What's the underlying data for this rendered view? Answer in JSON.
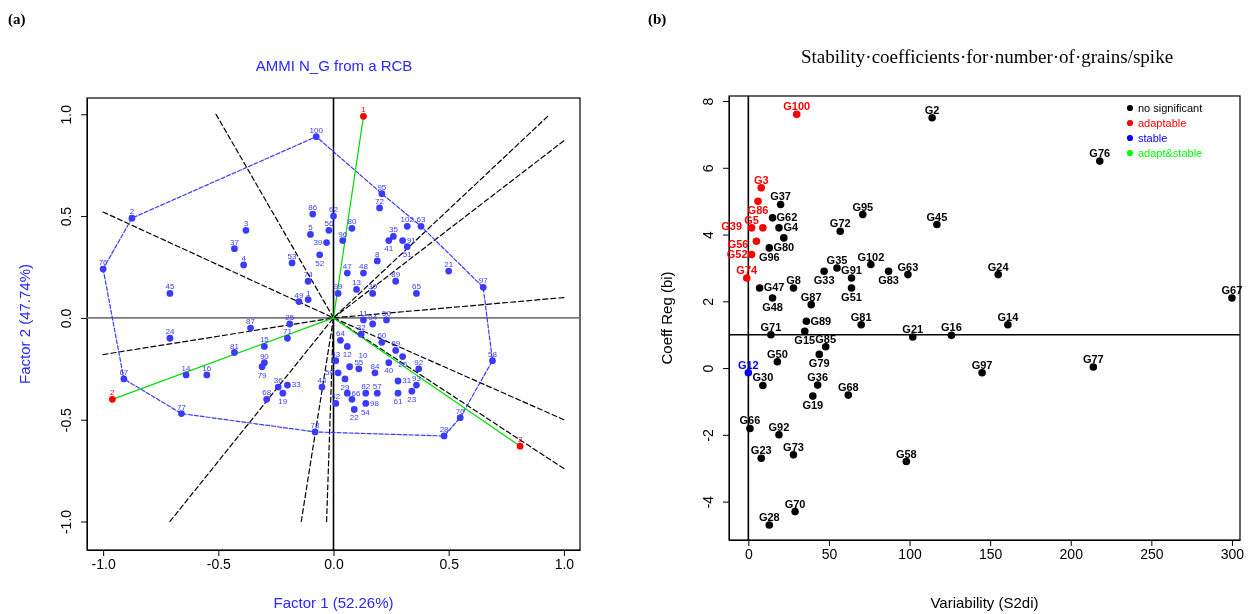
{
  "chart_data": [
    {
      "type": "scatter",
      "title": "AMMI N_G from a RCB",
      "xlabel": "Factor 1 (52.26%)",
      "ylabel": "Factor 2 (47.74%)",
      "xlim": [
        -1.07,
        1.07
      ],
      "ylim": [
        -1.14,
        1.08
      ],
      "xticks": [
        {
          "value": -1,
          "label": "-1.0"
        },
        {
          "value": -0.5,
          "label": "-0.5"
        },
        {
          "value": 0,
          "label": "0.0"
        },
        {
          "value": 0.5,
          "label": "0.5"
        },
        {
          "value": 1,
          "label": "1.0"
        }
      ],
      "yticks": [
        {
          "value": -1,
          "label": "-1.0"
        },
        {
          "value": -0.5,
          "label": "-0.5"
        },
        {
          "value": 0,
          "label": "0.0"
        },
        {
          "value": 0.5,
          "label": "0.5"
        },
        {
          "value": 1,
          "label": "1.0"
        }
      ],
      "grid": false,
      "legend": false,
      "ref_lines": [
        {
          "axis": "x",
          "value": 0,
          "color": "#000000"
        },
        {
          "axis": "y",
          "value": 0,
          "color": "#777777"
        }
      ],
      "series": [
        {
          "type": "line",
          "color": "#000000",
          "line_style": "dashed",
          "x": [
            -1.0,
            0,
            1.0
          ],
          "values": [
            0.52,
            0,
            -0.5
          ]
        },
        {
          "type": "line",
          "color": "#000000",
          "line_style": "dashed",
          "x": [
            0,
            -0.51
          ],
          "values": [
            0,
            1.0
          ]
        },
        {
          "type": "line",
          "color": "#000000",
          "line_style": "dashed",
          "x": [
            -0.71,
            0,
            0.93
          ],
          "values": [
            -1.0,
            0,
            0.99
          ]
        },
        {
          "type": "line",
          "color": "#000000",
          "line_style": "dashed",
          "x": [
            0,
            1.0
          ],
          "values": [
            0,
            0.87
          ]
        },
        {
          "type": "line",
          "color": "#000000",
          "line_style": "dashed",
          "x": [
            -1.0,
            0,
            1.0
          ],
          "values": [
            -0.18,
            0,
            0.1
          ]
        },
        {
          "type": "line",
          "color": "#000000",
          "line_style": "dashed",
          "x": [
            0,
            1.0
          ],
          "values": [
            0,
            -0.74
          ]
        },
        {
          "type": "line",
          "color": "#000000",
          "line_style": "dashed",
          "x": [
            0,
            -0.03
          ],
          "values": [
            0,
            -1.0
          ]
        },
        {
          "type": "line",
          "color": "#000000",
          "line_style": "dashed",
          "x": [
            0,
            -0.14
          ],
          "values": [
            0,
            -1.0
          ]
        },
        {
          "type": "line",
          "color": "#3b3bff",
          "line_style": "dashed",
          "x": [
            -1.0,
            -0.875,
            -0.075,
            0.21,
            0.38,
            0.65,
            0.69
          ],
          "values": [
            0.24,
            0.49,
            0.89,
            0.61,
            0.45,
            0.15,
            -0.21
          ]
        },
        {
          "type": "line",
          "color": "#3b3bff",
          "line_style": "dashed",
          "x": [
            -1.0,
            -0.91,
            -0.66,
            -0.08,
            0.48,
            0.55,
            0.69
          ],
          "values": [
            0.24,
            -0.3,
            -0.47,
            -0.56,
            -0.58,
            -0.49,
            -0.21
          ]
        },
        {
          "type": "line",
          "color": "#00dd00",
          "line_style": "solid",
          "x": [
            0,
            0.13
          ],
          "values": [
            0,
            0.99
          ]
        },
        {
          "type": "line",
          "color": "#00dd00",
          "line_style": "solid",
          "x": [
            0,
            -0.96
          ],
          "values": [
            0,
            -0.4
          ]
        },
        {
          "type": "line",
          "color": "#00dd00",
          "line_style": "solid",
          "x": [
            0,
            0.81
          ],
          "values": [
            0,
            -0.63
          ]
        },
        {
          "color": "#3b3bff",
          "marker": "circle",
          "x": [
            -0.075,
            -0.875,
            -1.0,
            -0.38,
            -0.43,
            -0.39,
            -0.71,
            -0.18,
            -0.09,
            0.0,
            -0.1,
            -0.02,
            -0.03,
            -0.06,
            -0.11,
            -0.15,
            -0.11,
            0.02,
            0.21,
            0.2,
            0.08,
            0.04,
            0.32,
            0.38,
            0.24,
            0.26,
            0.3,
            0.32,
            0.19,
            0.06,
            0.13,
            0.5,
            0.27,
            0.65,
            0.1,
            0.17,
            0.36,
            0.13,
            0.17,
            0.23,
            -0.71,
            -0.36,
            -0.19,
            -0.2,
            -0.43,
            -0.3,
            -0.3,
            -0.31,
            -0.91,
            -0.64,
            -0.55,
            -0.24,
            -0.2,
            -0.22,
            -0.29,
            -0.66,
            -0.05,
            -0.08,
            0.03,
            0.06,
            0.01,
            0.07,
            0.11,
            0.02,
            0.05,
            0.18,
            0.12,
            0.21,
            0.27,
            0.3,
            0.24,
            0.37,
            0.28,
            0.28,
            0.34,
            0.36,
            0.06,
            0.14,
            0.19,
            0.08,
            0.14,
            0.09,
            0.01,
            0.55,
            0.48,
            0.69
          ],
          "values": [
            0.89,
            0.49,
            0.24,
            0.43,
            0.34,
            0.26,
            0.12,
            0.27,
            0.51,
            0.5,
            0.41,
            0.43,
            0.37,
            0.31,
            0.18,
            0.08,
            0.09,
            0.12,
            0.61,
            0.54,
            0.44,
            0.38,
            0.45,
            0.45,
            0.38,
            0.4,
            0.38,
            0.35,
            0.28,
            0.22,
            0.22,
            0.23,
            0.18,
            0.15,
            0.14,
            0.12,
            0.12,
            -0.01,
            -0.03,
            -0.01,
            -0.1,
            -0.05,
            -0.03,
            -0.1,
            -0.17,
            -0.14,
            -0.22,
            -0.24,
            -0.3,
            -0.28,
            -0.28,
            -0.34,
            -0.33,
            -0.37,
            -0.4,
            -0.47,
            -0.34,
            -0.56,
            -0.11,
            -0.14,
            -0.21,
            -0.24,
            -0.25,
            -0.27,
            -0.3,
            -0.27,
            -0.08,
            -0.12,
            -0.16,
            -0.19,
            -0.22,
            -0.25,
            -0.31,
            -0.37,
            -0.36,
            -0.33,
            -0.37,
            -0.37,
            -0.37,
            -0.4,
            -0.42,
            -0.45,
            -0.42,
            -0.49,
            -0.58,
            -0.21
          ]
        },
        {
          "color": "#ff0000",
          "marker": "circle",
          "x": [
            0.13,
            -0.96,
            0.81
          ],
          "values": [
            0.99,
            -0.4,
            -0.63
          ]
        }
      ],
      "annotations": [
        "(a)",
        {
          "text": "100",
          "x": -0.075,
          "y": 0.89
        },
        {
          "text": "2",
          "x": -0.875,
          "y": 0.49
        },
        {
          "text": "76",
          "x": -1.0,
          "y": 0.24
        },
        {
          "text": "3",
          "x": -0.38,
          "y": 0.43
        },
        {
          "text": "37",
          "x": -0.43,
          "y": 0.34
        },
        {
          "text": "4",
          "x": -0.39,
          "y": 0.26
        },
        {
          "text": "45",
          "x": -0.71,
          "y": 0.12
        },
        {
          "text": "53",
          "x": -0.18,
          "y": 0.27
        },
        {
          "text": "86",
          "x": -0.09,
          "y": 0.51
        },
        {
          "text": "62",
          "x": 0.0,
          "y": 0.5
        },
        {
          "text": "5",
          "x": -0.1,
          "y": 0.41
        },
        {
          "text": "56",
          "x": -0.02,
          "y": 0.43
        },
        {
          "text": "39",
          "x": -0.03,
          "y": 0.37
        },
        {
          "text": "52",
          "x": -0.06,
          "y": 0.31
        },
        {
          "text": "74",
          "x": -0.11,
          "y": 0.18
        },
        {
          "text": "49",
          "x": -0.15,
          "y": 0.08
        },
        {
          "text": "1",
          "x": -0.11,
          "y": 0.09
        },
        {
          "text": "99",
          "x": 0.02,
          "y": 0.12
        },
        {
          "text": "95",
          "x": 0.21,
          "y": 0.61
        },
        {
          "text": "72",
          "x": 0.2,
          "y": 0.54
        },
        {
          "text": "80",
          "x": 0.08,
          "y": 0.44
        },
        {
          "text": "96",
          "x": 0.04,
          "y": 0.38
        },
        {
          "text": "102",
          "x": 0.32,
          "y": 0.45
        },
        {
          "text": "63",
          "x": 0.38,
          "y": 0.45
        },
        {
          "text": "41",
          "x": 0.24,
          "y": 0.38
        },
        {
          "text": "35",
          "x": 0.26,
          "y": 0.4
        },
        {
          "text": "91",
          "x": 0.3,
          "y": 0.38
        },
        {
          "text": "51",
          "x": 0.32,
          "y": 0.35
        },
        {
          "text": "8",
          "x": 0.19,
          "y": 0.28
        },
        {
          "text": "47",
          "x": 0.06,
          "y": 0.22
        },
        {
          "text": "48",
          "x": 0.13,
          "y": 0.22
        },
        {
          "text": "21",
          "x": 0.5,
          "y": 0.23
        },
        {
          "text": "89",
          "x": 0.27,
          "y": 0.18
        },
        {
          "text": "97",
          "x": 0.65,
          "y": 0.15
        },
        {
          "text": "13",
          "x": 0.1,
          "y": 0.14
        },
        {
          "text": "30",
          "x": 0.17,
          "y": 0.12
        },
        {
          "text": "65",
          "x": 0.36,
          "y": 0.12
        },
        {
          "text": "11",
          "x": 0.13,
          "y": -0.01
        },
        {
          "text": "94",
          "x": 0.17,
          "y": -0.03
        },
        {
          "text": "50",
          "x": 0.23,
          "y": -0.01
        },
        {
          "text": "24",
          "x": -0.71,
          "y": -0.1
        },
        {
          "text": "87",
          "x": -0.36,
          "y": -0.05
        },
        {
          "text": "25",
          "x": -0.19,
          "y": -0.03
        },
        {
          "text": "71",
          "x": -0.2,
          "y": -0.1
        },
        {
          "text": "81",
          "x": -0.43,
          "y": -0.17
        },
        {
          "text": "15",
          "x": -0.3,
          "y": -0.14
        },
        {
          "text": "90",
          "x": -0.3,
          "y": -0.22
        },
        {
          "text": "79",
          "x": -0.31,
          "y": -0.24
        },
        {
          "text": "67",
          "x": -0.91,
          "y": -0.3
        },
        {
          "text": "14",
          "x": -0.64,
          "y": -0.28
        },
        {
          "text": "16",
          "x": -0.55,
          "y": -0.28
        },
        {
          "text": "36",
          "x": -0.24,
          "y": -0.34
        },
        {
          "text": "33",
          "x": -0.2,
          "y": -0.33
        },
        {
          "text": "19",
          "x": -0.22,
          "y": -0.37
        },
        {
          "text": "68",
          "x": -0.29,
          "y": -0.4
        },
        {
          "text": "77",
          "x": -0.66,
          "y": -0.47
        },
        {
          "text": "44",
          "x": -0.05,
          "y": -0.34
        },
        {
          "text": "78",
          "x": -0.08,
          "y": -0.56
        },
        {
          "text": "64",
          "x": 0.03,
          "y": -0.11
        },
        {
          "text": "12",
          "x": 0.06,
          "y": -0.14
        },
        {
          "text": "43",
          "x": 0.01,
          "y": -0.21
        },
        {
          "text": "10",
          "x": 0.07,
          "y": -0.24
        },
        {
          "text": "55",
          "x": 0.11,
          "y": -0.25
        },
        {
          "text": "59",
          "x": 0.02,
          "y": -0.27
        },
        {
          "text": "29",
          "x": 0.05,
          "y": -0.3
        },
        {
          "text": "84",
          "x": 0.18,
          "y": -0.27
        },
        {
          "text": "32",
          "x": 0.12,
          "y": -0.08
        },
        {
          "text": "60",
          "x": 0.21,
          "y": -0.12
        },
        {
          "text": "69",
          "x": 0.27,
          "y": -0.16
        },
        {
          "text": "20",
          "x": 0.3,
          "y": -0.19
        },
        {
          "text": "40",
          "x": 0.24,
          "y": -0.22
        },
        {
          "text": "92",
          "x": 0.37,
          "y": -0.25
        },
        {
          "text": "31",
          "x": 0.28,
          "y": -0.31
        },
        {
          "text": "61",
          "x": 0.28,
          "y": -0.37
        },
        {
          "text": "23",
          "x": 0.34,
          "y": -0.36
        },
        {
          "text": "93",
          "x": 0.36,
          "y": -0.33
        },
        {
          "text": "66",
          "x": 0.06,
          "y": -0.37
        },
        {
          "text": "82",
          "x": 0.14,
          "y": -0.37
        },
        {
          "text": "57",
          "x": 0.19,
          "y": -0.37
        },
        {
          "text": "54",
          "x": 0.08,
          "y": -0.4
        },
        {
          "text": "98",
          "x": 0.14,
          "y": -0.42
        },
        {
          "text": "22",
          "x": 0.09,
          "y": -0.45
        },
        {
          "text": "42",
          "x": 0.01,
          "y": -0.42
        },
        {
          "text": "70",
          "x": 0.55,
          "y": -0.49
        },
        {
          "text": "28",
          "x": 0.48,
          "y": -0.58
        },
        {
          "text": "58",
          "x": 0.69,
          "y": -0.21
        },
        {
          "text": "1",
          "x": 0.13,
          "y": 0.99
        },
        {
          "text": "2",
          "x": -0.96,
          "y": -0.4
        },
        {
          "text": "3",
          "x": 0.81,
          "y": -0.63
        }
      ]
    },
    {
      "type": "scatter",
      "title": "Stability·coefficients·for·number·of·grains/spike",
      "xlabel": "Variability (S2di)",
      "ylabel": "Coeff Reg (bi)",
      "xlim": [
        -12,
        305
      ],
      "ylim": [
        -5.15,
        8.15
      ],
      "xticks": [
        0,
        50,
        100,
        150,
        200,
        250,
        300
      ],
      "yticks": [
        -4,
        -2,
        0,
        2,
        4,
        6,
        8
      ],
      "grid": false,
      "legend": "top right",
      "marker": "circle",
      "ref_lines": [
        {
          "axis": "x",
          "value": 0,
          "color": "#000000"
        },
        {
          "axis": "y",
          "value": 1,
          "color": "#000000"
        }
      ],
      "series": [
        {
          "name": "no significant",
          "color": "#000000",
          "x": [
            114,
            20,
            15,
            71,
            117,
            19,
            57,
            22,
            13,
            47,
            55,
            76,
            87,
            99,
            64,
            64,
            155,
            218,
            300,
            161,
            102,
            126,
            145,
            214,
            7,
            28,
            15,
            39,
            36,
            70,
            35,
            14,
            48,
            44,
            18,
            9,
            43,
            40,
            62,
            1,
            19,
            28,
            8,
            98,
            29,
            13
          ],
          "values": [
            7.5,
            4.9,
            4.5,
            4.6,
            4.3,
            4.2,
            4.1,
            3.9,
            3.6,
            2.9,
            3.0,
            3.1,
            2.9,
            2.8,
            2.7,
            2.4,
            2.8,
            6.2,
            2.1,
            1.3,
            0.93,
            0.98,
            -0.14,
            0.03,
            2.4,
            2.4,
            2.1,
            1.9,
            1.4,
            1.3,
            1.1,
            1.0,
            0.64,
            0.41,
            0.19,
            -0.52,
            -0.51,
            -0.84,
            -0.81,
            -1.81,
            -2.0,
            -2.6,
            -2.7,
            -2.8,
            -4.3,
            -4.7
          ]
        },
        {
          "name": "adaptable",
          "color": "#ff0000",
          "x": [
            30,
            8,
            6,
            2,
            9,
            5,
            2,
            -1
          ],
          "values": [
            7.6,
            5.4,
            5.0,
            4.2,
            4.2,
            3.8,
            3.4,
            2.7
          ]
        },
        {
          "name": "stable",
          "color": "#0000ff",
          "x": [
            0
          ],
          "values": [
            -0.14
          ]
        },
        {
          "name": "adapt&stable",
          "color": "#00ff00"
        }
      ],
      "annotations": [
        "(b)",
        {
          "text": "G2",
          "x": 114,
          "y": 7.5
        },
        {
          "text": "G37",
          "x": 20,
          "y": 4.9
        },
        {
          "text": "G62",
          "x": 15,
          "y": 4.5
        },
        {
          "text": "G95",
          "x": 71,
          "y": 4.6
        },
        {
          "text": "G45",
          "x": 117,
          "y": 4.3
        },
        {
          "text": "G4",
          "x": 19,
          "y": 4.2
        },
        {
          "text": "G72",
          "x": 57,
          "y": 4.1
        },
        {
          "text": "G80",
          "x": 22,
          "y": 3.9
        },
        {
          "text": "G96",
          "x": 13,
          "y": 3.6
        },
        {
          "text": "G33",
          "x": 47,
          "y": 2.9
        },
        {
          "text": "G35",
          "x": 55,
          "y": 3.0
        },
        {
          "text": "G102",
          "x": 76,
          "y": 3.1
        },
        {
          "text": "G83",
          "x": 87,
          "y": 2.9
        },
        {
          "text": "G63",
          "x": 99,
          "y": 2.8
        },
        {
          "text": "G91",
          "x": 64,
          "y": 2.7
        },
        {
          "text": "G51",
          "x": 64,
          "y": 2.4
        },
        {
          "text": "G24",
          "x": 155,
          "y": 2.8
        },
        {
          "text": "G76",
          "x": 218,
          "y": 6.2
        },
        {
          "text": "G67",
          "x": 300,
          "y": 2.1
        },
        {
          "text": "G14",
          "x": 161,
          "y": 1.3
        },
        {
          "text": "G21",
          "x": 102,
          "y": 0.93
        },
        {
          "text": "G16",
          "x": 126,
          "y": 0.98
        },
        {
          "text": "G97",
          "x": 145,
          "y": -0.14
        },
        {
          "text": "G77",
          "x": 214,
          "y": 0.03
        },
        {
          "text": "G47",
          "x": 7,
          "y": 2.4
        },
        {
          "text": "G8",
          "x": 28,
          "y": 2.4
        },
        {
          "text": "G48",
          "x": 15,
          "y": 2.1
        },
        {
          "text": "G87",
          "x": 39,
          "y": 1.9
        },
        {
          "text": "G89",
          "x": 36,
          "y": 1.4
        },
        {
          "text": "G81",
          "x": 70,
          "y": 1.3
        },
        {
          "text": "G15",
          "x": 35,
          "y": 1.1
        },
        {
          "text": "G71",
          "x": 14,
          "y": 1.0
        },
        {
          "text": "G85",
          "x": 48,
          "y": 0.64
        },
        {
          "text": "G79",
          "x": 44,
          "y": 0.41
        },
        {
          "text": "G50",
          "x": 18,
          "y": 0.19
        },
        {
          "text": "G30",
          "x": 9,
          "y": -0.52
        },
        {
          "text": "G36",
          "x": 43,
          "y": -0.51
        },
        {
          "text": "G19",
          "x": 40,
          "y": -0.84
        },
        {
          "text": "G68",
          "x": 62,
          "y": -0.81
        },
        {
          "text": "G66",
          "x": 1,
          "y": -1.81
        },
        {
          "text": "G92",
          "x": 19,
          "y": -2.0
        },
        {
          "text": "G73",
          "x": 28,
          "y": -2.6
        },
        {
          "text": "G23",
          "x": 8,
          "y": -2.7
        },
        {
          "text": "G58",
          "x": 98,
          "y": -2.8
        },
        {
          "text": "G70",
          "x": 29,
          "y": -4.3
        },
        {
          "text": "G28",
          "x": 13,
          "y": -4.7
        },
        {
          "text": "G100",
          "x": 30,
          "y": 7.6
        },
        {
          "text": "G3",
          "x": 8,
          "y": 5.4
        },
        {
          "text": "G86",
          "x": 6,
          "y": 5.0
        },
        {
          "text": "G5",
          "x": 2,
          "y": 4.2
        },
        {
          "text": "G56",
          "x": 9,
          "y": 4.2
        },
        {
          "text": "G39",
          "x": 5,
          "y": 3.8
        },
        {
          "text": "G52",
          "x": 2,
          "y": 3.4
        },
        {
          "text": "G74",
          "x": -1,
          "y": 2.7
        },
        {
          "text": "G12",
          "x": 0,
          "y": -0.14
        }
      ]
    }
  ]
}
